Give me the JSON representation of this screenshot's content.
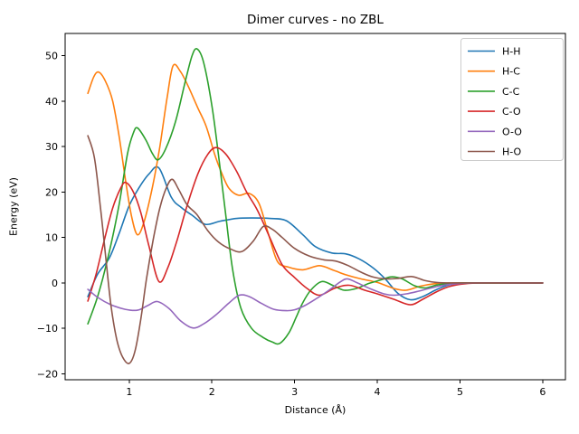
{
  "chart_data": {
    "type": "line",
    "title": "Dimer curves - no ZBL",
    "xlabel": "Distance (Å)",
    "ylabel": "Energy (eV)",
    "xlim": [
      0.225,
      6.275
    ],
    "ylim": [
      -21.3,
      54.9
    ],
    "xticks": [
      1,
      2,
      3,
      4,
      5,
      6
    ],
    "yticks": [
      -20,
      -10,
      0,
      10,
      20,
      30,
      40,
      50
    ],
    "grid": false,
    "legend_position": "upper right",
    "axis_color": "#000000",
    "legend_border_color": "#cccccc",
    "series": [
      {
        "name": "H-H",
        "color": "#1f77b4",
        "points": [
          [
            0.5,
            -3
          ],
          [
            0.62,
            2
          ],
          [
            0.76,
            5.5
          ],
          [
            0.88,
            11
          ],
          [
            1.0,
            17
          ],
          [
            1.12,
            21
          ],
          [
            1.24,
            24
          ],
          [
            1.36,
            25.3
          ],
          [
            1.51,
            18.8
          ],
          [
            1.63,
            16.6
          ],
          [
            1.76,
            14.9
          ],
          [
            1.92,
            12.9
          ],
          [
            2.1,
            13.6
          ],
          [
            2.3,
            14.2
          ],
          [
            2.5,
            14.3
          ],
          [
            2.7,
            14.2
          ],
          [
            2.9,
            13.7
          ],
          [
            3.1,
            10.6
          ],
          [
            3.25,
            8.0
          ],
          [
            3.45,
            6.6
          ],
          [
            3.62,
            6.4
          ],
          [
            3.78,
            5.3
          ],
          [
            3.95,
            3.3
          ],
          [
            4.1,
            0.8
          ],
          [
            4.25,
            -2.3
          ],
          [
            4.4,
            -3.7
          ],
          [
            4.55,
            -3.0
          ],
          [
            4.7,
            -1.6
          ],
          [
            4.85,
            -0.5
          ],
          [
            5.0,
            -0.1
          ],
          [
            5.3,
            0
          ],
          [
            5.65,
            0
          ],
          [
            6.0,
            0
          ]
        ]
      },
      {
        "name": "H-C",
        "color": "#ff7f0e",
        "points": [
          [
            0.5,
            41.7
          ],
          [
            0.57,
            45.3
          ],
          [
            0.63,
            46.4
          ],
          [
            0.71,
            44.5
          ],
          [
            0.8,
            40
          ],
          [
            0.88,
            32
          ],
          [
            0.96,
            22
          ],
          [
            1.03,
            14.5
          ],
          [
            1.1,
            10.6
          ],
          [
            1.18,
            13.5
          ],
          [
            1.28,
            21
          ],
          [
            1.37,
            30
          ],
          [
            1.46,
            41
          ],
          [
            1.53,
            47.8
          ],
          [
            1.62,
            46.5
          ],
          [
            1.72,
            43
          ],
          [
            1.83,
            38.5
          ],
          [
            1.93,
            34.5
          ],
          [
            2.03,
            28.5
          ],
          [
            2.1,
            25
          ],
          [
            2.2,
            21
          ],
          [
            2.32,
            19.3
          ],
          [
            2.45,
            19.7
          ],
          [
            2.57,
            17.5
          ],
          [
            2.68,
            11
          ],
          [
            2.79,
            4.8
          ],
          [
            2.92,
            3.5
          ],
          [
            3.1,
            2.9
          ],
          [
            3.3,
            3.8
          ],
          [
            3.47,
            2.8
          ],
          [
            3.62,
            1.8
          ],
          [
            3.8,
            0.9
          ],
          [
            4.0,
            0.1
          ],
          [
            4.2,
            -1.2
          ],
          [
            4.35,
            -1.6
          ],
          [
            4.52,
            -0.7
          ],
          [
            4.68,
            -0.2
          ],
          [
            4.85,
            0
          ],
          [
            5.3,
            0
          ],
          [
            6.0,
            0
          ]
        ]
      },
      {
        "name": "C-C",
        "color": "#2ca02c",
        "points": [
          [
            0.5,
            -9
          ],
          [
            0.6,
            -4
          ],
          [
            0.68,
            1
          ],
          [
            0.78,
            8.5
          ],
          [
            0.88,
            17.5
          ],
          [
            0.98,
            28.5
          ],
          [
            1.05,
            33
          ],
          [
            1.1,
            34.1
          ],
          [
            1.2,
            31.5
          ],
          [
            1.28,
            28.5
          ],
          [
            1.35,
            27.1
          ],
          [
            1.44,
            29.5
          ],
          [
            1.56,
            35.5
          ],
          [
            1.68,
            44.5
          ],
          [
            1.76,
            50
          ],
          [
            1.82,
            51.5
          ],
          [
            1.9,
            48.5
          ],
          [
            2.0,
            39
          ],
          [
            2.08,
            28
          ],
          [
            2.16,
            16
          ],
          [
            2.25,
            3
          ],
          [
            2.35,
            -5.5
          ],
          [
            2.48,
            -10
          ],
          [
            2.62,
            -12
          ],
          [
            2.73,
            -13
          ],
          [
            2.82,
            -13.3
          ],
          [
            2.93,
            -11
          ],
          [
            3.02,
            -7.5
          ],
          [
            3.1,
            -4.3
          ],
          [
            3.2,
            -1.5
          ],
          [
            3.33,
            0.3
          ],
          [
            3.47,
            -0.6
          ],
          [
            3.6,
            -1.6
          ],
          [
            3.75,
            -1.2
          ],
          [
            3.9,
            -0.1
          ],
          [
            4.05,
            0.7
          ],
          [
            4.17,
            1.35
          ],
          [
            4.3,
            0.9
          ],
          [
            4.45,
            -0.6
          ],
          [
            4.58,
            -1.1
          ],
          [
            4.72,
            -0.45
          ],
          [
            4.88,
            -0.1
          ],
          [
            5.1,
            0
          ],
          [
            5.55,
            0
          ],
          [
            6.0,
            0
          ]
        ]
      },
      {
        "name": "C-O",
        "color": "#d62728",
        "points": [
          [
            0.5,
            -4
          ],
          [
            0.6,
            2
          ],
          [
            0.7,
            9.5
          ],
          [
            0.8,
            16.5
          ],
          [
            0.9,
            21
          ],
          [
            0.96,
            22.1
          ],
          [
            1.05,
            20
          ],
          [
            1.14,
            15.5
          ],
          [
            1.24,
            8
          ],
          [
            1.36,
            0.3
          ],
          [
            1.47,
            3.5
          ],
          [
            1.58,
            9.5
          ],
          [
            1.7,
            17
          ],
          [
            1.83,
            24
          ],
          [
            1.95,
            28.3
          ],
          [
            2.05,
            29.8
          ],
          [
            2.17,
            28.3
          ],
          [
            2.3,
            24.5
          ],
          [
            2.42,
            20
          ],
          [
            2.55,
            16
          ],
          [
            2.7,
            10
          ],
          [
            2.85,
            4
          ],
          [
            3.0,
            1.2
          ],
          [
            3.15,
            -1.2
          ],
          [
            3.3,
            -2.7
          ],
          [
            3.48,
            -1.2
          ],
          [
            3.66,
            -0.5
          ],
          [
            3.85,
            -1.6
          ],
          [
            4.0,
            -2.4
          ],
          [
            4.2,
            -3.6
          ],
          [
            4.4,
            -4.8
          ],
          [
            4.55,
            -3.6
          ],
          [
            4.7,
            -2.1
          ],
          [
            4.85,
            -0.9
          ],
          [
            5.0,
            -0.3
          ],
          [
            5.2,
            0
          ],
          [
            5.6,
            0
          ],
          [
            6.0,
            0
          ]
        ]
      },
      {
        "name": "O-O",
        "color": "#9467bd",
        "points": [
          [
            0.5,
            -1.4
          ],
          [
            0.62,
            -3.2
          ],
          [
            0.78,
            -4.8
          ],
          [
            0.95,
            -5.8
          ],
          [
            1.1,
            -6.0
          ],
          [
            1.22,
            -5.0
          ],
          [
            1.34,
            -4.1
          ],
          [
            1.48,
            -5.6
          ],
          [
            1.62,
            -8.3
          ],
          [
            1.77,
            -9.9
          ],
          [
            1.9,
            -9.0
          ],
          [
            2.05,
            -7.0
          ],
          [
            2.2,
            -4.5
          ],
          [
            2.33,
            -2.7
          ],
          [
            2.45,
            -3.0
          ],
          [
            2.6,
            -4.5
          ],
          [
            2.75,
            -5.8
          ],
          [
            2.9,
            -6.1
          ],
          [
            3.0,
            -5.9
          ],
          [
            3.12,
            -5.0
          ],
          [
            3.25,
            -3.6
          ],
          [
            3.4,
            -1.8
          ],
          [
            3.55,
            0.2
          ],
          [
            3.64,
            0.9
          ],
          [
            3.76,
            0
          ],
          [
            3.92,
            -1.3
          ],
          [
            4.08,
            -2.4
          ],
          [
            4.2,
            -2.7
          ],
          [
            4.35,
            -2.4
          ],
          [
            4.5,
            -1.8
          ],
          [
            4.65,
            -1.1
          ],
          [
            4.8,
            -0.5
          ],
          [
            4.95,
            -0.2
          ],
          [
            5.15,
            0
          ],
          [
            5.6,
            0
          ],
          [
            6.0,
            0
          ]
        ]
      },
      {
        "name": "H-O",
        "color": "#8c564b",
        "points": [
          [
            0.5,
            32.4
          ],
          [
            0.58,
            27.5
          ],
          [
            0.65,
            17
          ],
          [
            0.72,
            5
          ],
          [
            0.78,
            -5
          ],
          [
            0.85,
            -12.5
          ],
          [
            0.92,
            -16.3
          ],
          [
            1.0,
            -17.7
          ],
          [
            1.07,
            -15
          ],
          [
            1.14,
            -8
          ],
          [
            1.21,
            1
          ],
          [
            1.29,
            9.5
          ],
          [
            1.37,
            16.5
          ],
          [
            1.45,
            21
          ],
          [
            1.52,
            22.8
          ],
          [
            1.6,
            20.5
          ],
          [
            1.7,
            17.2
          ],
          [
            1.82,
            15
          ],
          [
            1.95,
            11.5
          ],
          [
            2.08,
            9
          ],
          [
            2.22,
            7.5
          ],
          [
            2.36,
            6.9
          ],
          [
            2.5,
            9.2
          ],
          [
            2.62,
            12.4
          ],
          [
            2.73,
            11.8
          ],
          [
            2.85,
            10
          ],
          [
            3.0,
            7.6
          ],
          [
            3.18,
            5.9
          ],
          [
            3.35,
            5.1
          ],
          [
            3.5,
            4.8
          ],
          [
            3.65,
            3.8
          ],
          [
            3.8,
            2.4
          ],
          [
            3.95,
            1.3
          ],
          [
            4.1,
            0.9
          ],
          [
            4.25,
            1.0
          ],
          [
            4.42,
            1.4
          ],
          [
            4.58,
            0.5
          ],
          [
            4.72,
            0.1
          ],
          [
            4.9,
            0
          ],
          [
            5.4,
            0
          ],
          [
            6.0,
            0
          ]
        ]
      }
    ]
  }
}
